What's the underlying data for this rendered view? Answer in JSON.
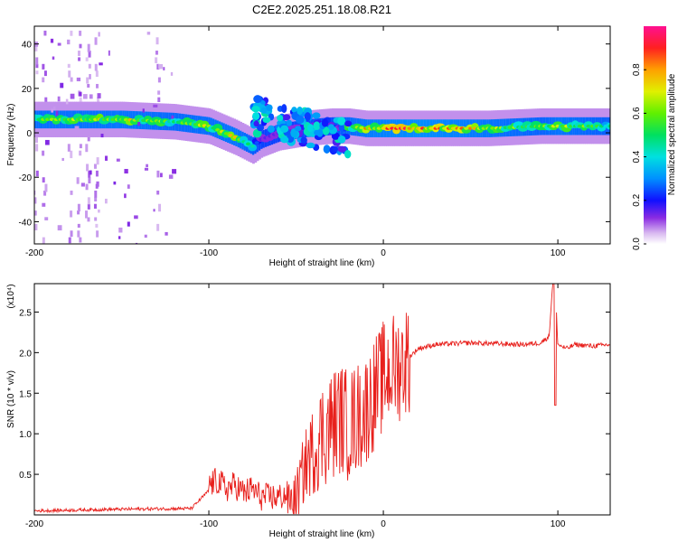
{
  "title": "C2E2.2025.251.18.08.R21",
  "chart_data": [
    {
      "type": "heatmap",
      "xlabel": "Height of straight line (km)",
      "ylabel": "Frequency (Hz)",
      "xlim": [
        -200,
        130
      ],
      "ylim": [
        -50,
        48
      ],
      "x_ticks": [
        "-200",
        "-100",
        "0",
        "100"
      ],
      "y_ticks": [
        "40",
        "20",
        "0",
        "-20",
        "-40"
      ],
      "colorbar": {
        "label": "Normalized spectral amplitude",
        "range": [
          0,
          1
        ],
        "ticks": [
          "0.0",
          "0.2",
          "0.4",
          "0.6",
          "0.8"
        ]
      },
      "ridge": {
        "description_points_x_km": [
          -200,
          -150,
          -120,
          -100,
          -85,
          -75,
          -70,
          -60,
          -45,
          -30,
          -20,
          -10,
          0,
          20,
          60,
          90,
          100,
          130
        ],
        "freq_hz": [
          6,
          6,
          5,
          3,
          -2,
          -6,
          -3,
          0,
          2,
          3,
          3,
          2,
          2,
          2,
          2,
          3,
          3,
          3
        ],
        "peak_amplitude": [
          0.75,
          0.8,
          0.7,
          0.75,
          0.8,
          0.6,
          0.4,
          0.4,
          0.45,
          0.5,
          0.7,
          0.85,
          0.9,
          1.0,
          0.8,
          0.65,
          0.8,
          0.6
        ]
      },
      "scatter_region": {
        "x_range_km": [
          -75,
          -20
        ],
        "freq_range_hz": [
          -15,
          15
        ]
      },
      "vertical_streaks_x_km": [
        -200,
        -195,
        -180,
        -175,
        -170,
        -165,
        -130
      ]
    },
    {
      "type": "line",
      "xlabel": "Height of straight line (km)",
      "ylabel": "SNR (10 * v/v)",
      "scale_label": "(x10⁴)",
      "xlim": [
        -200,
        130
      ],
      "ylim": [
        0,
        2.85
      ],
      "x_ticks": [
        "-200",
        "-100",
        "0",
        "100"
      ],
      "y_ticks": [
        "0.5",
        "1.0",
        "1.5",
        "2.0",
        "2.5"
      ],
      "color": "#e8201c",
      "series": [
        {
          "name": "SNR",
          "x": [
            -200,
            -150,
            -110,
            -100,
            -95,
            -90,
            -85,
            -80,
            -75,
            -70,
            -60,
            -50,
            -45,
            -40,
            -35,
            -30,
            -25,
            -20,
            -15,
            -10,
            -5,
            0,
            5,
            10,
            15,
            20,
            30,
            50,
            80,
            90,
            95,
            97,
            98,
            99,
            100,
            105,
            110,
            120,
            130
          ],
          "y": [
            0.05,
            0.07,
            0.08,
            0.3,
            0.35,
            0.25,
            0.3,
            0.2,
            0.25,
            0.15,
            0.15,
            0.2,
            0.6,
            0.8,
            1.0,
            1.1,
            1.2,
            1.1,
            1.2,
            1.3,
            1.5,
            1.7,
            1.8,
            1.85,
            1.95,
            2.05,
            2.1,
            2.12,
            2.1,
            2.12,
            2.2,
            2.85,
            1.35,
            2.6,
            2.1,
            2.05,
            2.1,
            2.08,
            2.1
          ]
        }
      ]
    }
  ]
}
